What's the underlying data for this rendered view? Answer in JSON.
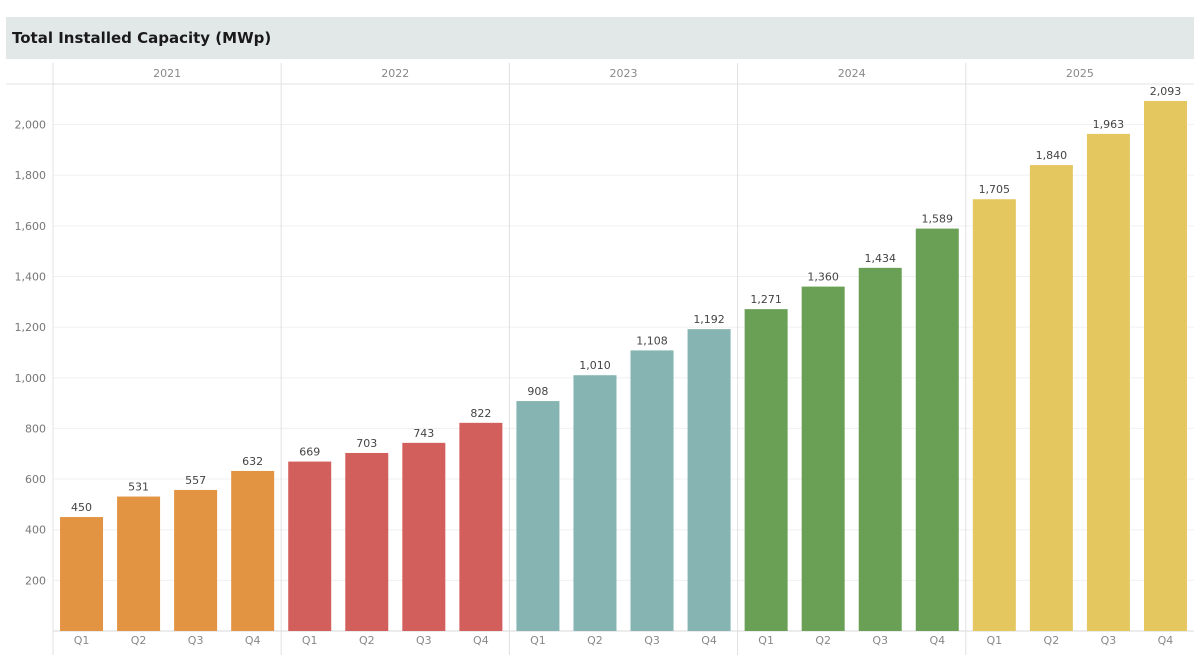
{
  "chart_data": {
    "type": "bar",
    "title": "Total Installed Capacity (MWp)",
    "xlabel": "",
    "ylabel": "",
    "grid": true,
    "ylim": [
      0,
      2160
    ],
    "yticks": [
      200,
      400,
      600,
      800,
      1000,
      1200,
      1400,
      1600,
      1800,
      2000
    ],
    "ytick_labels": [
      "200",
      "400",
      "600",
      "800",
      "1,000",
      "1,200",
      "1,400",
      "1,600",
      "1,800",
      "2,000"
    ],
    "groups": [
      {
        "label": "2021",
        "color": "#e29442",
        "quarters": [
          "Q1",
          "Q2",
          "Q3",
          "Q4"
        ],
        "values": [
          450,
          531,
          557,
          632
        ],
        "value_labels": [
          "450",
          "531",
          "557",
          "632"
        ]
      },
      {
        "label": "2022",
        "color": "#d35f5c",
        "quarters": [
          "Q1",
          "Q2",
          "Q3",
          "Q4"
        ],
        "values": [
          669,
          703,
          743,
          822
        ],
        "value_labels": [
          "669",
          "703",
          "743",
          "822"
        ]
      },
      {
        "label": "2023",
        "color": "#85b4b2",
        "quarters": [
          "Q1",
          "Q2",
          "Q3",
          "Q4"
        ],
        "values": [
          908,
          1010,
          1108,
          1192
        ],
        "value_labels": [
          "908",
          "1,010",
          "1,108",
          "1,192"
        ]
      },
      {
        "label": "2024",
        "color": "#69a055",
        "quarters": [
          "Q1",
          "Q2",
          "Q3",
          "Q4"
        ],
        "values": [
          1271,
          1360,
          1434,
          1589
        ],
        "value_labels": [
          "1,271",
          "1,360",
          "1,434",
          "1,589"
        ]
      },
      {
        "label": "2025",
        "color": "#e5c75f",
        "quarters": [
          "Q1",
          "Q2",
          "Q3",
          "Q4"
        ],
        "values": [
          1705,
          1840,
          1963,
          2093
        ],
        "value_labels": [
          "1,705",
          "1,840",
          "1,963",
          "2,093"
        ]
      }
    ]
  }
}
